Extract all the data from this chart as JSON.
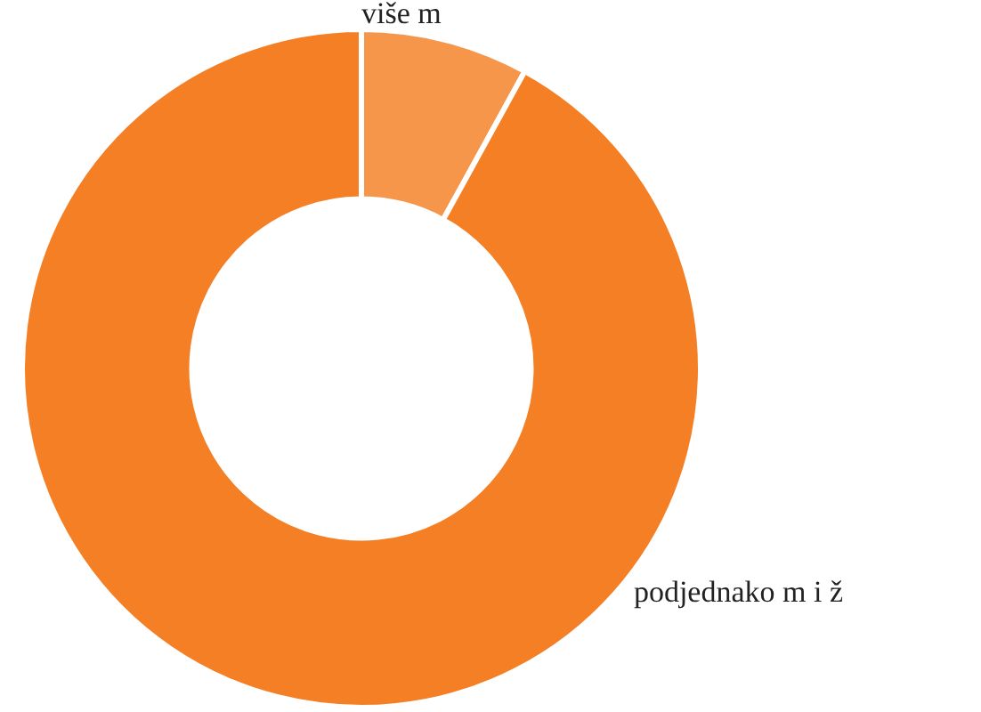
{
  "chart_data": {
    "type": "donut",
    "categories": [
      "više m",
      "podjednako m i ž"
    ],
    "values": [
      8,
      92
    ],
    "colors": [
      "#f5964a",
      "#f47f24"
    ],
    "legend": false
  }
}
